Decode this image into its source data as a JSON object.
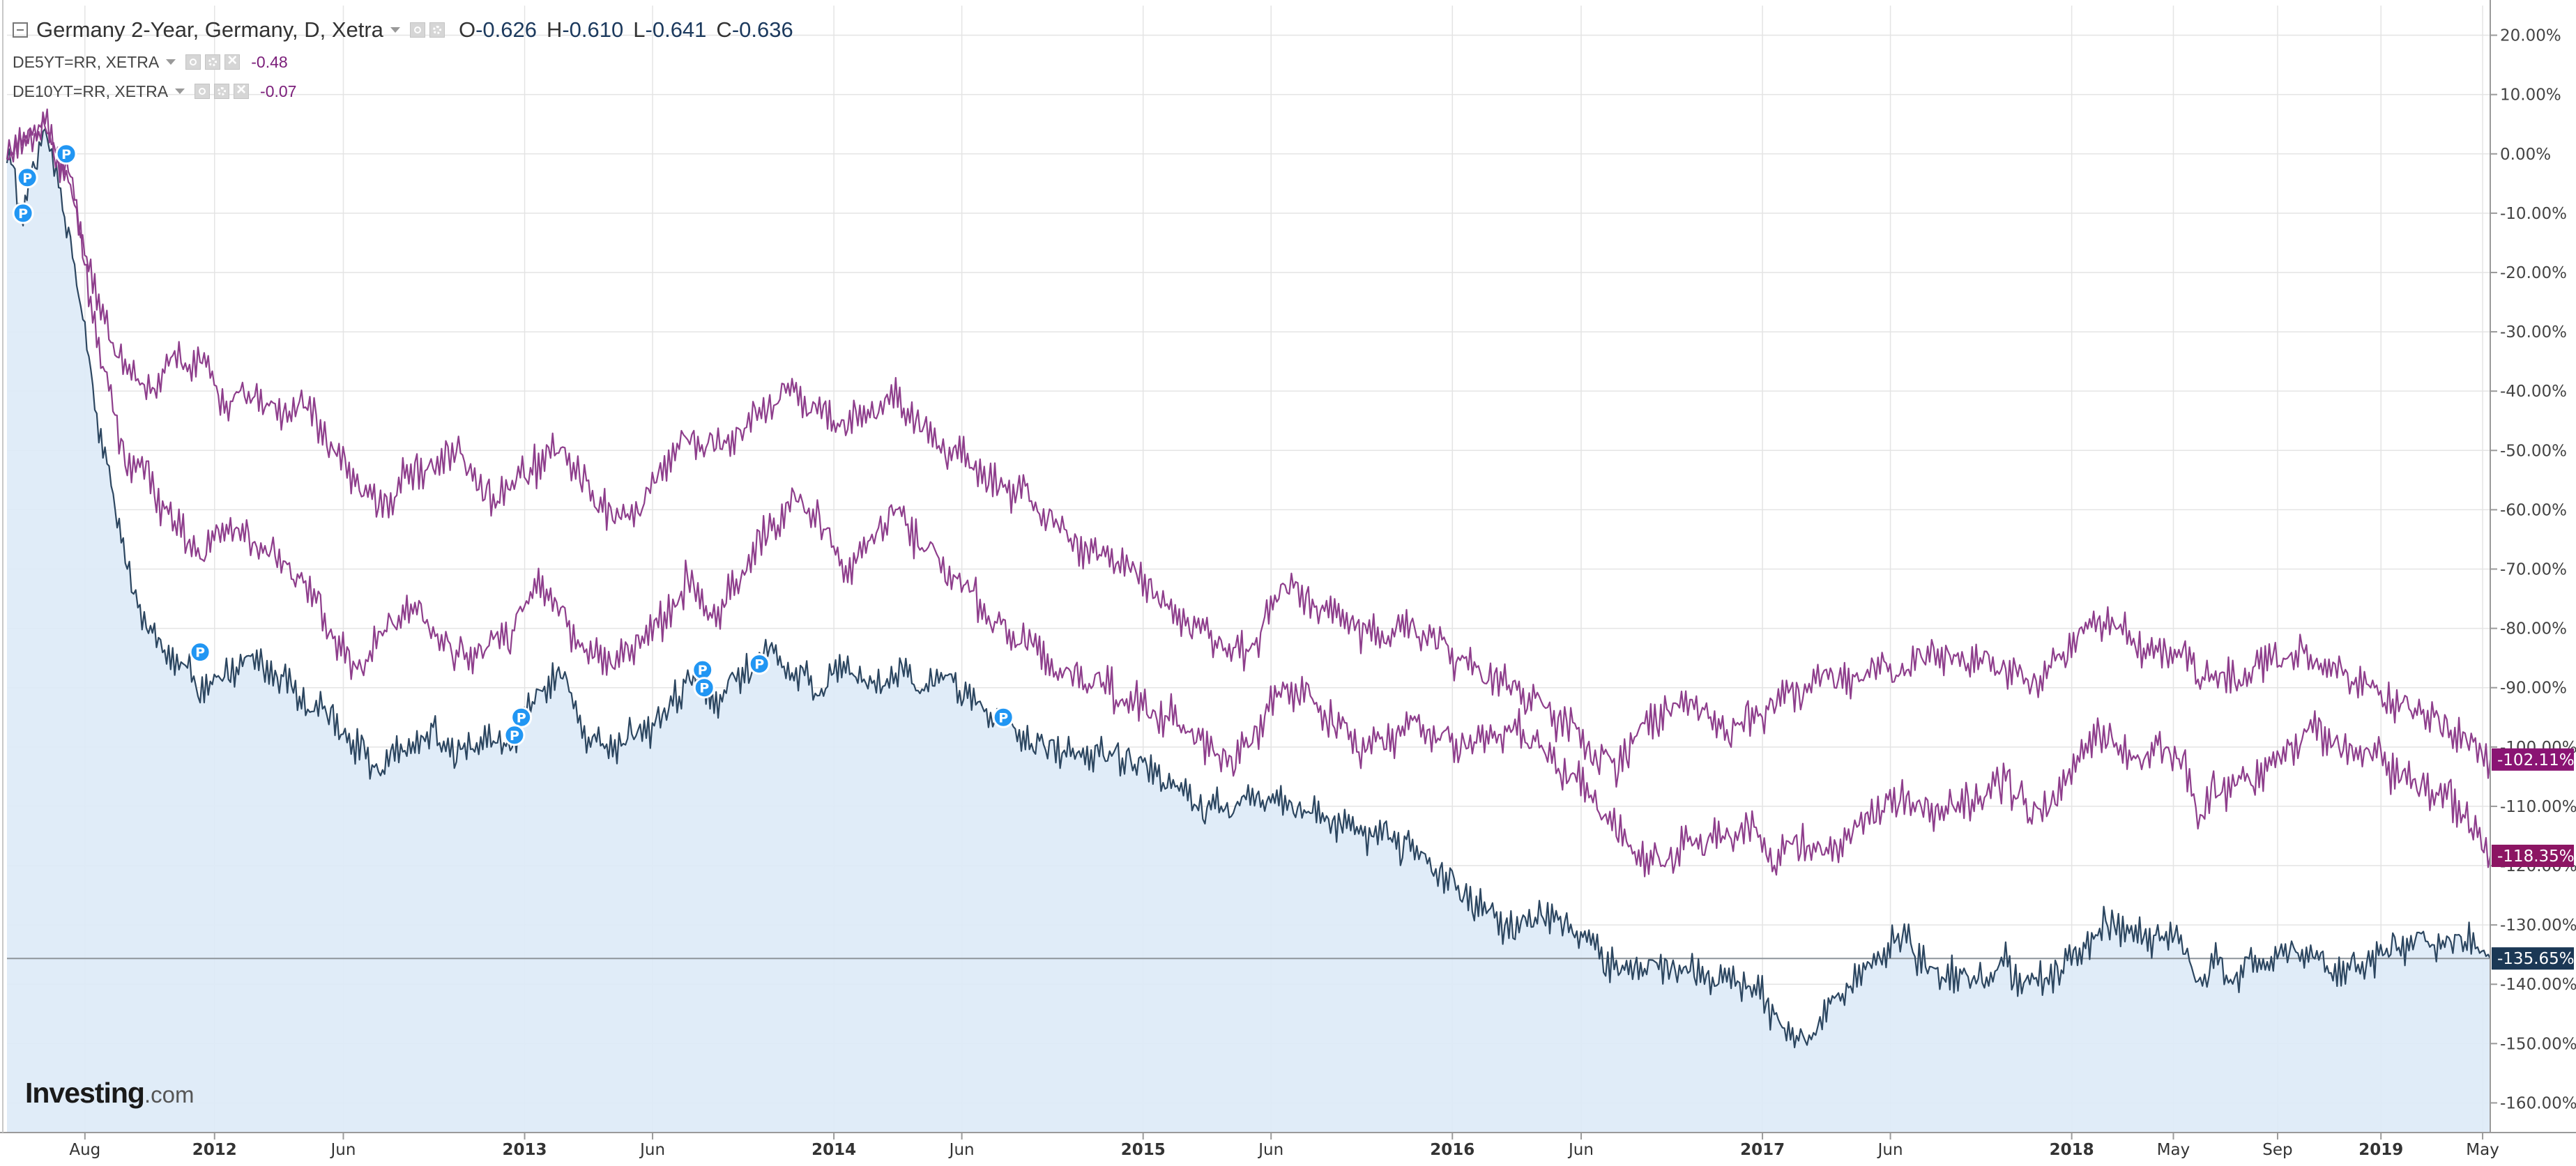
{
  "legend": {
    "main": {
      "title": "Germany 2-Year, Germany, D, Xetra",
      "o_label": "O",
      "o_value": "-0.626",
      "h_label": "H",
      "h_value": "-0.610",
      "l_label": "L",
      "l_value": "-0.641",
      "c_label": "C",
      "c_value": "-0.636"
    },
    "compare1": {
      "name": "DE5YT=RR, XETRA",
      "value": "-0.48"
    },
    "compare2": {
      "name": "DE10YT=RR, XETRA",
      "value": "-0.07"
    }
  },
  "logo": {
    "brand": "Investing",
    "suffix": ".com"
  },
  "colors": {
    "main_line": "#2c4660",
    "main_fill": "#ddeaf7",
    "compare_line": "#8e3e8c",
    "tag_5y": "#8c1563",
    "tag_10y": "#8a1473",
    "tag_main": "#1b3855",
    "marker": "#2196f3",
    "grid": "#e4e4e4",
    "axis_text": "#444444"
  },
  "chart_data": {
    "type": "line",
    "title": "Germany 2-Year, Germany, D, Xetra",
    "xlabel": "",
    "ylabel": "",
    "y_unit": "%",
    "ylim": [
      -165,
      25
    ],
    "xlim": [
      "2011-05-01",
      "2019-05-10"
    ],
    "grid": true,
    "legend_position": "top-left",
    "y_ticks": [
      20,
      10,
      0,
      -10,
      -20,
      -30,
      -40,
      -50,
      -60,
      -70,
      -80,
      -90,
      -100,
      -110,
      -120,
      -130,
      -140,
      -150,
      -160
    ],
    "y_tick_labels": [
      "20.00%",
      "10.00%",
      "0.00%",
      "-10.00%",
      "-20.00%",
      "-30.00%",
      "-40.00%",
      "-50.00%",
      "-60.00%",
      "-70.00%",
      "-80.00%",
      "-90.00%",
      "-100.00%",
      "-110.00%",
      "-120.00%",
      "-130.00%",
      "-140.00%",
      "-150.00%",
      "-160.00%"
    ],
    "x_ticks": [
      {
        "date": "2011-08-01",
        "label": "Aug",
        "bold": false
      },
      {
        "date": "2012-01-01",
        "label": "2012",
        "bold": true
      },
      {
        "date": "2012-06-01",
        "label": "Jun",
        "bold": false
      },
      {
        "date": "2013-01-01",
        "label": "2013",
        "bold": true
      },
      {
        "date": "2013-06-01",
        "label": "Jun",
        "bold": false
      },
      {
        "date": "2014-01-01",
        "label": "2014",
        "bold": true
      },
      {
        "date": "2014-06-01",
        "label": "Jun",
        "bold": false
      },
      {
        "date": "2015-01-01",
        "label": "2015",
        "bold": true
      },
      {
        "date": "2015-06-01",
        "label": "Jun",
        "bold": false
      },
      {
        "date": "2016-01-01",
        "label": "2016",
        "bold": true
      },
      {
        "date": "2016-06-01",
        "label": "Jun",
        "bold": false
      },
      {
        "date": "2017-01-01",
        "label": "2017",
        "bold": true
      },
      {
        "date": "2017-06-01",
        "label": "Jun",
        "bold": false
      },
      {
        "date": "2018-01-01",
        "label": "2018",
        "bold": true
      },
      {
        "date": "2018-05-01",
        "label": "May",
        "bold": false
      },
      {
        "date": "2018-09-01",
        "label": "Sep",
        "bold": false
      },
      {
        "date": "2019-01-01",
        "label": "2019",
        "bold": true
      },
      {
        "date": "2019-05-01",
        "label": "May",
        "bold": false
      }
    ],
    "baseline": -135.65,
    "series": [
      {
        "name": "Germany 2-Year, Germany, D, Xetra",
        "role": "main",
        "last_label": "-135.65%",
        "x": [
          "2011-05-01",
          "2011-05-20",
          "2011-06-15",
          "2011-07-01",
          "2011-07-15",
          "2011-08-01",
          "2011-08-15",
          "2011-09-01",
          "2011-09-20",
          "2011-10-15",
          "2011-11-15",
          "2011-12-15",
          "2012-01-15",
          "2012-02-15",
          "2012-03-15",
          "2012-04-15",
          "2012-05-15",
          "2012-06-15",
          "2012-07-15",
          "2012-08-15",
          "2012-09-15",
          "2012-10-15",
          "2012-11-15",
          "2012-12-15",
          "2013-01-15",
          "2013-02-15",
          "2013-03-15",
          "2013-04-15",
          "2013-05-15",
          "2013-06-15",
          "2013-07-15",
          "2013-08-15",
          "2013-09-15",
          "2013-10-15",
          "2013-11-15",
          "2013-12-15",
          "2014-01-15",
          "2014-02-15",
          "2014-03-15",
          "2014-04-15",
          "2014-05-15",
          "2014-06-15",
          "2014-07-15",
          "2014-08-15",
          "2014-09-15",
          "2014-10-15",
          "2014-11-15",
          "2014-12-15",
          "2015-01-15",
          "2015-02-15",
          "2015-03-15",
          "2015-04-15",
          "2015-05-15",
          "2015-06-15",
          "2015-07-15",
          "2015-08-15",
          "2015-09-15",
          "2015-10-15",
          "2015-11-15",
          "2015-12-15",
          "2016-01-15",
          "2016-02-15",
          "2016-03-15",
          "2016-04-15",
          "2016-05-15",
          "2016-06-15",
          "2016-07-15",
          "2016-08-15",
          "2016-09-15",
          "2016-10-15",
          "2016-11-15",
          "2016-12-15",
          "2017-01-15",
          "2017-02-15",
          "2017-03-15",
          "2017-04-15",
          "2017-05-15",
          "2017-06-15",
          "2017-07-15",
          "2017-08-15",
          "2017-09-15",
          "2017-10-15",
          "2017-11-15",
          "2017-12-15",
          "2018-01-15",
          "2018-02-15",
          "2018-03-15",
          "2018-04-15",
          "2018-05-15",
          "2018-05-30",
          "2018-06-15",
          "2018-07-15",
          "2018-08-15",
          "2018-09-15",
          "2018-10-15",
          "2018-11-15",
          "2018-12-15",
          "2019-01-15",
          "2019-02-15",
          "2019-03-15",
          "2019-04-15",
          "2019-05-10"
        ],
        "values": [
          0,
          -10,
          5,
          -5,
          -15,
          -30,
          -45,
          -55,
          -70,
          -80,
          -85,
          -90,
          -88,
          -85,
          -88,
          -92,
          -95,
          -100,
          -103,
          -100,
          -98,
          -102,
          -98,
          -100,
          -90,
          -88,
          -98,
          -100,
          -98,
          -95,
          -88,
          -92,
          -88,
          -83,
          -88,
          -90,
          -86,
          -90,
          -88,
          -89,
          -88,
          -93,
          -95,
          -98,
          -100,
          -102,
          -101,
          -102,
          -104,
          -108,
          -110,
          -110,
          -108,
          -110,
          -111,
          -112,
          -114,
          -115,
          -117,
          -120,
          -125,
          -128,
          -131,
          -128,
          -130,
          -133,
          -138,
          -136,
          -137,
          -138,
          -140,
          -139,
          -145,
          -151,
          -145,
          -140,
          -135,
          -132,
          -137,
          -138,
          -139,
          -137,
          -140,
          -138,
          -133,
          -130,
          -131,
          -132,
          -133,
          -140,
          -137,
          -138,
          -136,
          -134,
          -136,
          -138,
          -136,
          -134,
          -133,
          -133,
          -132,
          -135.65
        ]
      },
      {
        "name": "DE5YT=RR, XETRA",
        "role": "compare",
        "last_label": "-118.35%",
        "x": [
          "2011-05-01",
          "2011-06-15",
          "2011-07-15",
          "2011-08-15",
          "2011-09-15",
          "2011-10-15",
          "2011-11-15",
          "2011-12-15",
          "2012-01-15",
          "2012-02-15",
          "2012-03-15",
          "2012-04-15",
          "2012-05-15",
          "2012-06-15",
          "2012-07-15",
          "2012-08-15",
          "2012-09-15",
          "2012-10-15",
          "2012-11-15",
          "2012-12-15",
          "2013-01-15",
          "2013-02-15",
          "2013-03-15",
          "2013-04-15",
          "2013-05-15",
          "2013-06-15",
          "2013-07-15",
          "2013-08-15",
          "2013-09-15",
          "2013-10-15",
          "2013-11-15",
          "2013-12-15",
          "2014-01-15",
          "2014-02-15",
          "2014-03-15",
          "2014-04-15",
          "2014-05-15",
          "2014-06-15",
          "2014-07-15",
          "2014-08-15",
          "2014-09-15",
          "2014-10-15",
          "2014-11-15",
          "2014-12-15",
          "2015-01-15",
          "2015-02-15",
          "2015-03-15",
          "2015-04-15",
          "2015-05-15",
          "2015-06-15",
          "2015-07-15",
          "2015-08-15",
          "2015-09-15",
          "2015-10-15",
          "2015-11-15",
          "2015-12-15",
          "2016-01-15",
          "2016-02-15",
          "2016-03-15",
          "2016-04-15",
          "2016-05-15",
          "2016-06-15",
          "2016-07-15",
          "2016-08-15",
          "2016-09-15",
          "2016-10-15",
          "2016-11-15",
          "2016-12-15",
          "2017-01-15",
          "2017-02-15",
          "2017-03-15",
          "2017-04-15",
          "2017-05-15",
          "2017-06-15",
          "2017-07-15",
          "2017-08-15",
          "2017-09-15",
          "2017-10-15",
          "2017-11-15",
          "2017-12-15",
          "2018-01-15",
          "2018-02-15",
          "2018-03-15",
          "2018-04-15",
          "2018-05-15",
          "2018-05-30",
          "2018-06-15",
          "2018-07-15",
          "2018-08-15",
          "2018-09-15",
          "2018-10-15",
          "2018-11-15",
          "2018-12-15",
          "2019-01-15",
          "2019-02-15",
          "2019-03-15",
          "2019-04-15",
          "2019-05-10"
        ],
        "values": [
          0,
          5,
          -5,
          -30,
          -50,
          -55,
          -62,
          -68,
          -62,
          -65,
          -68,
          -72,
          -80,
          -88,
          -82,
          -76,
          -80,
          -85,
          -84,
          -80,
          -72,
          -78,
          -84,
          -86,
          -82,
          -78,
          -72,
          -78,
          -70,
          -64,
          -58,
          -62,
          -70,
          -65,
          -60,
          -66,
          -70,
          -75,
          -80,
          -82,
          -86,
          -88,
          -90,
          -92,
          -94,
          -96,
          -100,
          -103,
          -97,
          -90,
          -93,
          -96,
          -100,
          -99,
          -96,
          -98,
          -100,
          -98,
          -97,
          -100,
          -104,
          -108,
          -114,
          -120,
          -118,
          -116,
          -115,
          -114,
          -118,
          -116,
          -118,
          -115,
          -110,
          -108,
          -112,
          -110,
          -108,
          -105,
          -112,
          -108,
          -100,
          -98,
          -103,
          -100,
          -102,
          -112,
          -108,
          -106,
          -104,
          -100,
          -96,
          -102,
          -100,
          -104,
          -106,
          -108,
          -112,
          -118.35
        ]
      },
      {
        "name": "DE10YT=RR, XETRA",
        "role": "compare",
        "last_label": "-102.11%",
        "x": [
          "2011-05-01",
          "2011-06-15",
          "2011-07-15",
          "2011-08-15",
          "2011-09-15",
          "2011-10-15",
          "2011-11-15",
          "2011-12-15",
          "2012-01-15",
          "2012-02-15",
          "2012-03-15",
          "2012-04-15",
          "2012-05-15",
          "2012-06-15",
          "2012-07-15",
          "2012-08-15",
          "2012-09-15",
          "2012-10-15",
          "2012-11-15",
          "2012-12-15",
          "2013-01-15",
          "2013-02-15",
          "2013-03-15",
          "2013-04-15",
          "2013-05-15",
          "2013-06-15",
          "2013-07-15",
          "2013-08-15",
          "2013-09-15",
          "2013-10-15",
          "2013-11-15",
          "2013-12-15",
          "2014-01-15",
          "2014-02-15",
          "2014-03-15",
          "2014-04-15",
          "2014-05-15",
          "2014-06-15",
          "2014-07-15",
          "2014-08-15",
          "2014-09-15",
          "2014-10-15",
          "2014-11-15",
          "2014-12-15",
          "2015-01-15",
          "2015-02-15",
          "2015-03-15",
          "2015-04-15",
          "2015-05-15",
          "2015-06-15",
          "2015-07-15",
          "2015-08-15",
          "2015-09-15",
          "2015-10-15",
          "2015-11-15",
          "2015-12-15",
          "2016-01-15",
          "2016-02-15",
          "2016-03-15",
          "2016-04-15",
          "2016-05-15",
          "2016-06-15",
          "2016-07-15",
          "2016-08-15",
          "2016-09-15",
          "2016-10-15",
          "2016-11-15",
          "2016-12-15",
          "2017-01-15",
          "2017-02-15",
          "2017-03-15",
          "2017-04-15",
          "2017-05-15",
          "2017-06-15",
          "2017-07-15",
          "2017-08-15",
          "2017-09-15",
          "2017-10-15",
          "2017-11-15",
          "2017-12-15",
          "2018-01-15",
          "2018-02-15",
          "2018-03-15",
          "2018-04-15",
          "2018-05-15",
          "2018-05-30",
          "2018-06-15",
          "2018-07-15",
          "2018-08-15",
          "2018-09-15",
          "2018-10-15",
          "2018-11-15",
          "2018-12-15",
          "2019-01-15",
          "2019-02-15",
          "2019-03-15",
          "2019-04-15",
          "2019-05-10"
        ],
        "values": [
          0,
          5,
          -5,
          -25,
          -35,
          -40,
          -35,
          -35,
          -42,
          -40,
          -44,
          -42,
          -48,
          -55,
          -60,
          -55,
          -52,
          -50,
          -58,
          -56,
          -52,
          -50,
          -56,
          -62,
          -60,
          -52,
          -48,
          -50,
          -46,
          -42,
          -40,
          -44,
          -46,
          -43,
          -42,
          -46,
          -50,
          -52,
          -56,
          -58,
          -62,
          -66,
          -68,
          -70,
          -74,
          -78,
          -80,
          -85,
          -82,
          -72,
          -76,
          -78,
          -80,
          -81,
          -80,
          -82,
          -86,
          -88,
          -90,
          -93,
          -96,
          -100,
          -103,
          -96,
          -94,
          -92,
          -98,
          -96,
          -93,
          -90,
          -88,
          -90,
          -86,
          -88,
          -84,
          -86,
          -85,
          -87,
          -89,
          -86,
          -80,
          -78,
          -82,
          -85,
          -84,
          -88,
          -87,
          -89,
          -86,
          -84,
          -85,
          -88,
          -90,
          -92,
          -94,
          -96,
          -99,
          -102.11
        ]
      }
    ],
    "markers": [
      {
        "date": "2011-05-25",
        "value": -4,
        "label": "P"
      },
      {
        "date": "2011-05-20",
        "value": -10,
        "label": "P"
      },
      {
        "date": "2011-07-10",
        "value": 0,
        "label": "P"
      },
      {
        "date": "2011-12-15",
        "value": -84,
        "label": "P"
      },
      {
        "date": "2012-12-28",
        "value": -95,
        "label": "P"
      },
      {
        "date": "2012-12-20",
        "value": -98,
        "label": "P"
      },
      {
        "date": "2013-07-30",
        "value": -87,
        "label": "P"
      },
      {
        "date": "2013-08-01",
        "value": -90,
        "label": "P"
      },
      {
        "date": "2013-10-05",
        "value": -86,
        "label": "P"
      },
      {
        "date": "2014-07-20",
        "value": -95,
        "label": "P"
      }
    ]
  }
}
